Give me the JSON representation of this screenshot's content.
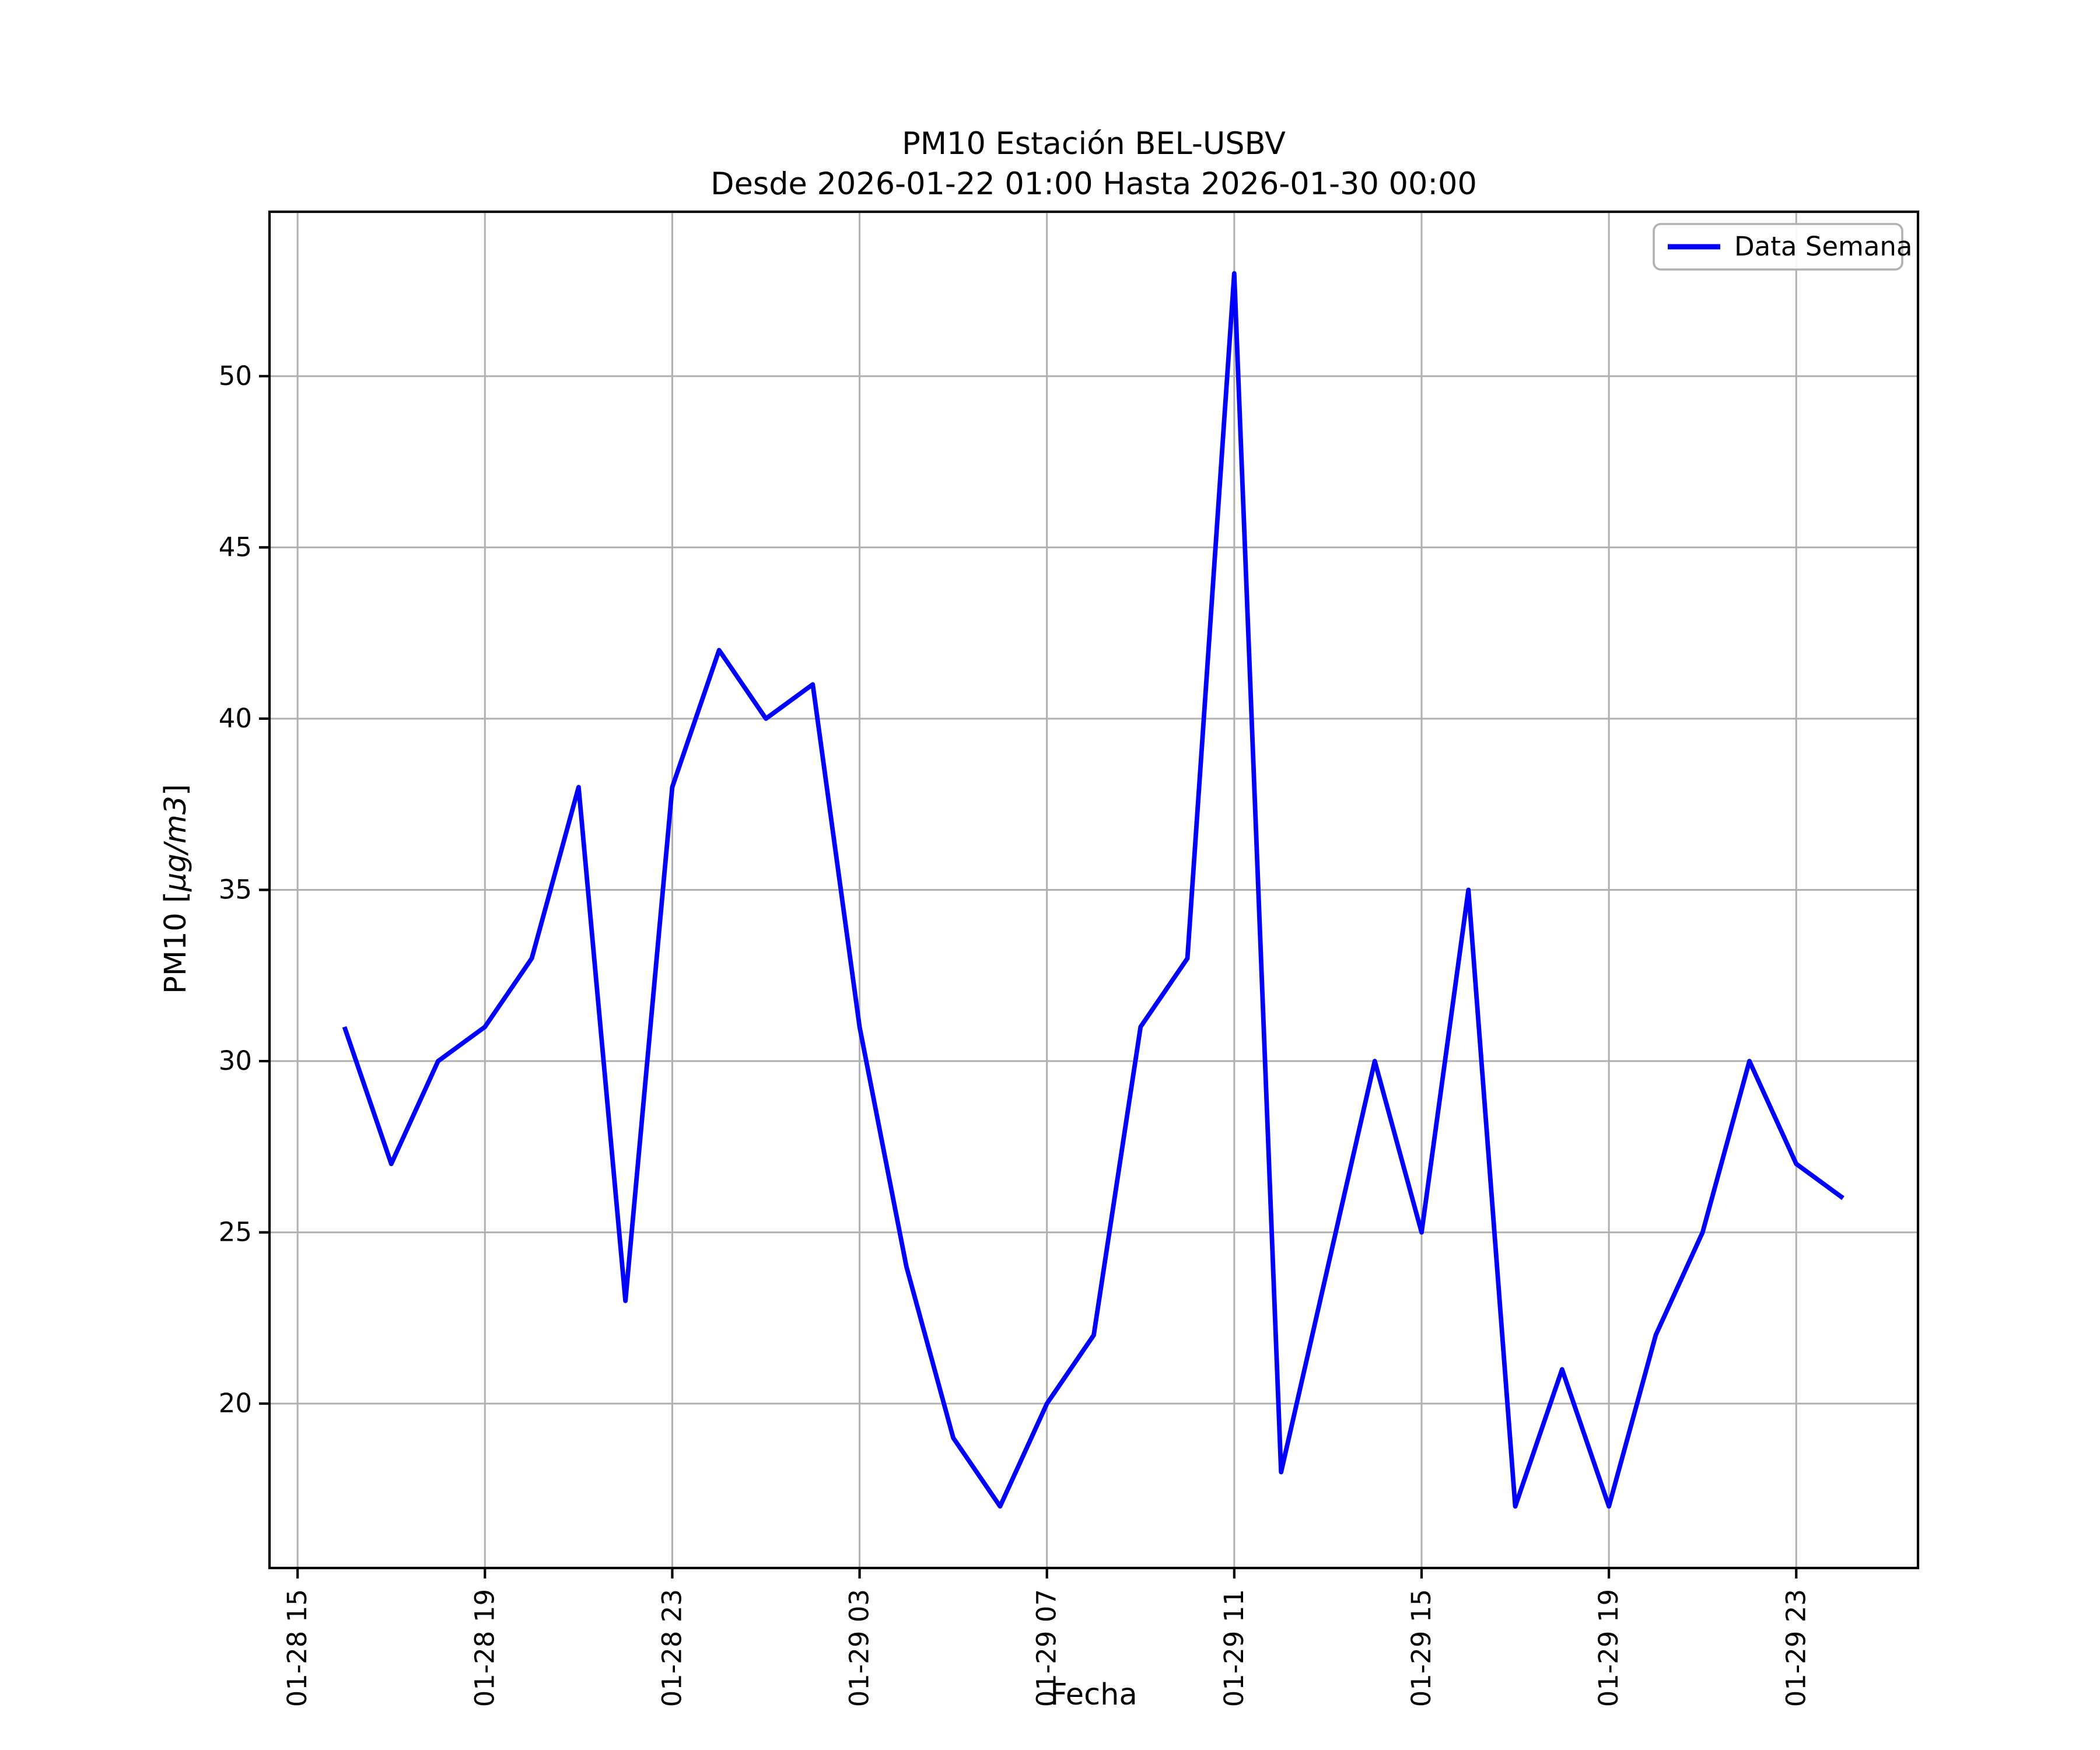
{
  "chart": {
    "title_line1": "PM10 Estación BEL-USBV",
    "title_line2": "Desde 2026-01-22 01:00 Hasta 2026-01-30 00:00",
    "xlabel": "Fecha",
    "ylabel_prefix": "PM10 [",
    "ylabel_math": "μg/m3",
    "ylabel_suffix": "]",
    "legend_label": "Data Semana"
  },
  "chart_data": {
    "type": "line",
    "title": "PM10 Estación BEL-USBV\nDesde 2026-01-22 01:00 Hasta 2026-01-30 00:00",
    "xlabel": "Fecha",
    "ylabel": "PM10 [μg/m3]",
    "legend": [
      "Data Semana"
    ],
    "legend_position": "upper right",
    "grid": true,
    "line_color": "#0000ff",
    "grid_color": "#b0b0b0",
    "x": [
      "01-28 16",
      "01-28 17",
      "01-28 18",
      "01-28 19",
      "01-28 20",
      "01-28 21",
      "01-28 22",
      "01-28 23",
      "01-29 00",
      "01-29 01",
      "01-29 02",
      "01-29 03",
      "01-29 04",
      "01-29 05",
      "01-29 06",
      "01-29 07",
      "01-29 08",
      "01-29 09",
      "01-29 10",
      "01-29 11",
      "01-29 12",
      "01-29 13",
      "01-29 14",
      "01-29 15",
      "01-29 16",
      "01-29 17",
      "01-29 18",
      "01-29 19",
      "01-29 20",
      "01-29 21",
      "01-29 22",
      "01-29 23",
      "01-30 00"
    ],
    "values": [
      31,
      27,
      30,
      31,
      33,
      38,
      23,
      38,
      42,
      40,
      41,
      31,
      24,
      19,
      17,
      20,
      22,
      31,
      33,
      53,
      18,
      24,
      30,
      25,
      35,
      17,
      21,
      17,
      22,
      25,
      30,
      27,
      26
    ],
    "xticks": [
      "01-28 15",
      "01-28 19",
      "01-28 23",
      "01-29 03",
      "01-29 07",
      "01-29 11",
      "01-29 15",
      "01-29 19",
      "01-29 23"
    ],
    "yticks": [
      20,
      25,
      30,
      35,
      40,
      45,
      50
    ],
    "ylim": [
      15.2,
      54.8
    ],
    "xlim_hours": [
      -0.6,
      34.6
    ]
  }
}
